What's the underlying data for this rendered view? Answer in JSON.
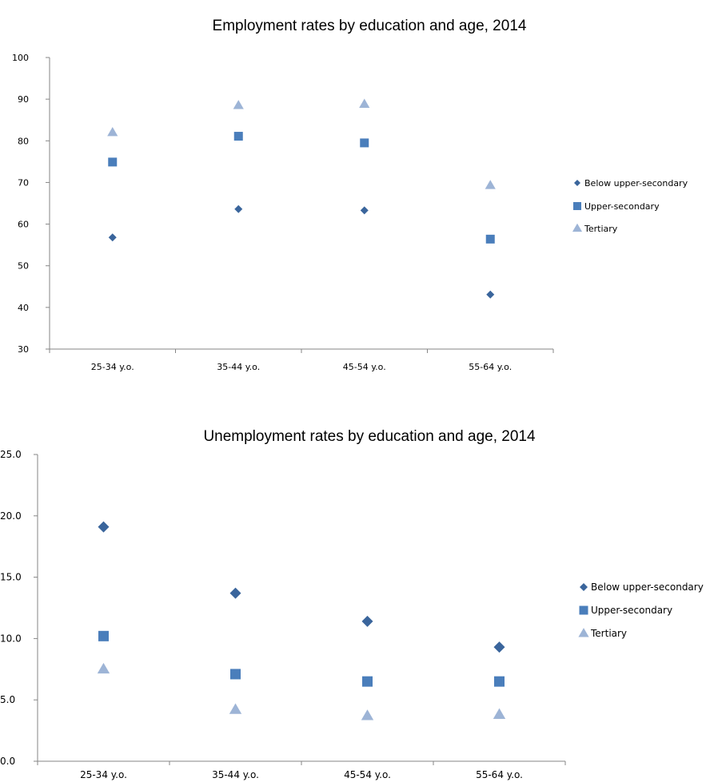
{
  "colors": {
    "below_upper_secondary": "#3A659C",
    "upper_secondary": "#4A7EBB",
    "tertiary": "#9DB4D6",
    "axis": "#868686"
  },
  "chart_data": [
    {
      "type": "scatter",
      "title": "Employment rates by education and age, 2014",
      "categories": [
        "25-34 y.o.",
        "35-44 y.o.",
        "45-54 y.o.",
        "55-64 y.o."
      ],
      "ylim": [
        30,
        100
      ],
      "yticks": [
        "30",
        "40",
        "50",
        "60",
        "70",
        "80",
        "90",
        "100"
      ],
      "ytick_values": [
        30,
        40,
        50,
        60,
        70,
        80,
        90,
        100
      ],
      "grid": false,
      "legend_position": "right",
      "series": [
        {
          "name": "Below upper-secondary",
          "marker": "diamond",
          "values": [
            56.8,
            63.6,
            63.3,
            43.1
          ]
        },
        {
          "name": "Upper-secondary",
          "marker": "square",
          "values": [
            74.9,
            81.1,
            79.5,
            56.4
          ]
        },
        {
          "name": "Tertiary",
          "marker": "triangle",
          "values": [
            82.0,
            88.5,
            88.8,
            69.3
          ]
        }
      ]
    },
    {
      "type": "scatter",
      "title": "Unemployment rates by education and age, 2014",
      "categories": [
        "25-34 y.o.",
        "35-44 y.o.",
        "45-54 y.o.",
        "55-64 y.o."
      ],
      "ylim": [
        0,
        25
      ],
      "yticks": [
        "0.0",
        "5.0",
        "10.0",
        "15.0",
        "20.0",
        "25.0"
      ],
      "ytick_values": [
        0,
        5,
        10,
        15,
        20,
        25
      ],
      "grid": false,
      "legend_position": "right",
      "series": [
        {
          "name": "Below upper-secondary",
          "marker": "diamond",
          "values": [
            19.1,
            13.7,
            11.4,
            9.3
          ]
        },
        {
          "name": "Upper-secondary",
          "marker": "square",
          "values": [
            10.2,
            7.1,
            6.5,
            6.5
          ]
        },
        {
          "name": "Tertiary",
          "marker": "triangle",
          "values": [
            7.5,
            4.2,
            3.7,
            3.8
          ]
        }
      ]
    }
  ]
}
